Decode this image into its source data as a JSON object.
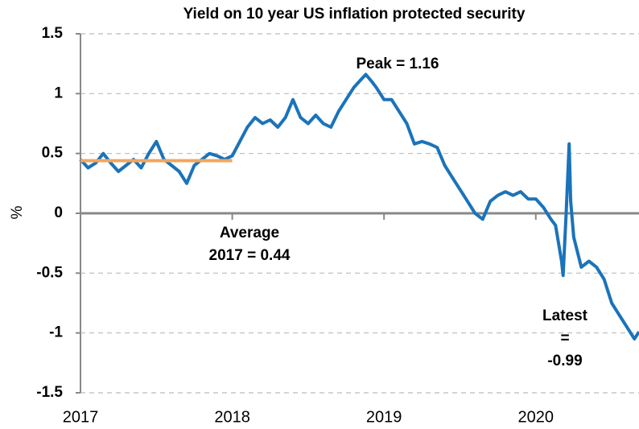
{
  "chart_data": {
    "type": "line",
    "title": "Yield on 10 year US inflation protected security",
    "ylabel": "%",
    "xlim": [
      2017,
      2020.68
    ],
    "ylim": [
      -1.5,
      1.5
    ],
    "xticks": [
      2017,
      2018,
      2019,
      2020
    ],
    "yticks": [
      1.5,
      1,
      0.5,
      0,
      -0.5,
      -1,
      -1.5
    ],
    "grid": true,
    "x": [
      2017.0,
      2017.05,
      2017.1,
      2017.15,
      2017.2,
      2017.25,
      2017.3,
      2017.35,
      2017.4,
      2017.45,
      2017.5,
      2017.55,
      2017.6,
      2017.65,
      2017.7,
      2017.75,
      2017.8,
      2017.85,
      2017.9,
      2017.95,
      2018.0,
      2018.05,
      2018.1,
      2018.15,
      2018.2,
      2018.25,
      2018.3,
      2018.35,
      2018.4,
      2018.45,
      2018.5,
      2018.55,
      2018.6,
      2018.65,
      2018.7,
      2018.75,
      2018.8,
      2018.85,
      2018.88,
      2018.92,
      2018.95,
      2019.0,
      2019.05,
      2019.1,
      2019.15,
      2019.2,
      2019.25,
      2019.3,
      2019.35,
      2019.4,
      2019.45,
      2019.5,
      2019.55,
      2019.6,
      2019.65,
      2019.7,
      2019.75,
      2019.8,
      2019.85,
      2019.9,
      2019.95,
      2020.0,
      2020.05,
      2020.1,
      2020.13,
      2020.17,
      2020.18,
      2020.2,
      2020.22,
      2020.23,
      2020.25,
      2020.3,
      2020.35,
      2020.4,
      2020.45,
      2020.5,
      2020.55,
      2020.6,
      2020.65,
      2020.68
    ],
    "values": [
      0.45,
      0.38,
      0.42,
      0.5,
      0.42,
      0.35,
      0.4,
      0.45,
      0.38,
      0.5,
      0.6,
      0.45,
      0.4,
      0.35,
      0.25,
      0.4,
      0.45,
      0.5,
      0.48,
      0.45,
      0.48,
      0.6,
      0.72,
      0.8,
      0.75,
      0.78,
      0.72,
      0.8,
      0.95,
      0.8,
      0.75,
      0.82,
      0.75,
      0.72,
      0.85,
      0.95,
      1.05,
      1.12,
      1.16,
      1.1,
      1.05,
      0.95,
      0.95,
      0.85,
      0.75,
      0.58,
      0.6,
      0.58,
      0.55,
      0.4,
      0.3,
      0.2,
      0.1,
      0.0,
      -0.05,
      0.1,
      0.15,
      0.18,
      0.15,
      0.18,
      0.12,
      0.12,
      0.05,
      -0.05,
      -0.1,
      -0.4,
      -0.52,
      0.0,
      0.58,
      0.1,
      -0.2,
      -0.45,
      -0.4,
      -0.45,
      -0.55,
      -0.75,
      -0.85,
      -0.95,
      -1.05,
      -0.99
    ],
    "color": "#1b73ba",
    "average": {
      "x": [
        2017,
        2018
      ],
      "values": [
        0.44,
        0.44
      ],
      "color": "#f2a65e"
    },
    "annotations": [
      [
        "Peak = 1.16"
      ],
      [
        "Average",
        "2017 = 0.44"
      ],
      [
        "Latest",
        "=",
        "-0.99"
      ]
    ]
  }
}
